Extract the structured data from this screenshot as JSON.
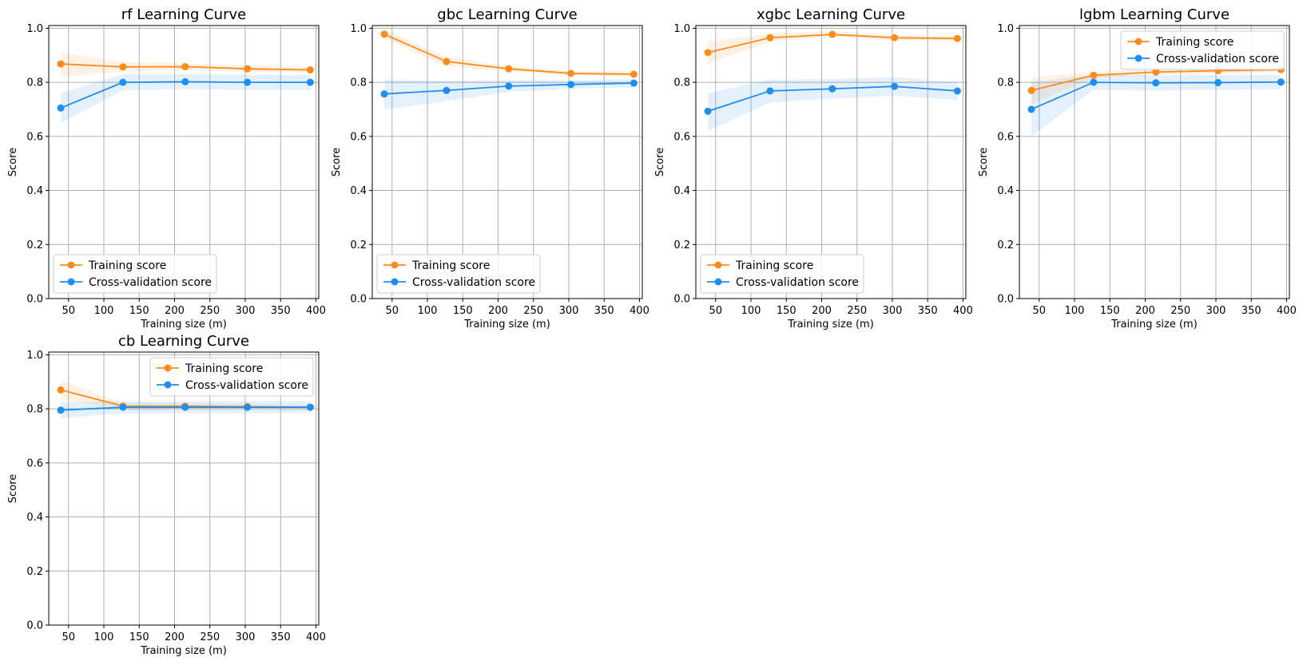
{
  "colors": {
    "training": "#ff8c1a",
    "validation": "#1e8ff0",
    "grid": "#b0b0b0",
    "axis": "#000000",
    "legend_border": "#cccccc"
  },
  "chart_data": [
    {
      "type": "line",
      "title": "rf Learning Curve",
      "xlabel": "Training size (m)",
      "ylabel": "Score",
      "xlim": [
        22,
        404
      ],
      "ylim": [
        0.0,
        1.01
      ],
      "xticks": [
        50,
        100,
        150,
        200,
        250,
        300,
        350,
        400
      ],
      "yticks": [
        0.0,
        0.2,
        0.4,
        0.6,
        0.8,
        1.0
      ],
      "ytick_labels": [
        "0.0",
        "0.2",
        "0.4",
        "0.6",
        "0.8",
        "1.0"
      ],
      "grid": true,
      "legend_position": "lower-left",
      "x": [
        39,
        127,
        215,
        303,
        392
      ],
      "series": [
        {
          "name": "Training score",
          "color_key": "training",
          "values": [
            0.868,
            0.857,
            0.858,
            0.85,
            0.846
          ],
          "lower": [
            0.82,
            0.84,
            0.845,
            0.838,
            0.836
          ],
          "upper": [
            0.91,
            0.875,
            0.87,
            0.862,
            0.856
          ]
        },
        {
          "name": "Cross-validation score",
          "color_key": "validation",
          "values": [
            0.705,
            0.8,
            0.802,
            0.8,
            0.8
          ],
          "lower": [
            0.65,
            0.77,
            0.775,
            0.772,
            0.772
          ],
          "upper": [
            0.76,
            0.83,
            0.83,
            0.828,
            0.828
          ]
        }
      ]
    },
    {
      "type": "line",
      "title": "gbc Learning Curve",
      "xlabel": "Training size (m)",
      "ylabel": "Score",
      "xlim": [
        22,
        404
      ],
      "ylim": [
        0.0,
        1.01
      ],
      "xticks": [
        50,
        100,
        150,
        200,
        250,
        300,
        350,
        400
      ],
      "yticks": [
        0.0,
        0.2,
        0.4,
        0.6,
        0.8,
        1.0
      ],
      "ytick_labels": [
        "0.0",
        "0.2",
        "0.4",
        "0.6",
        "0.8",
        "1.0"
      ],
      "grid": true,
      "legend_position": "lower-left",
      "x": [
        39,
        127,
        215,
        303,
        392
      ],
      "series": [
        {
          "name": "Training score",
          "color_key": "training",
          "values": [
            0.978,
            0.877,
            0.85,
            0.833,
            0.83
          ],
          "lower": [
            0.96,
            0.86,
            0.84,
            0.825,
            0.822
          ],
          "upper": [
            0.996,
            0.895,
            0.86,
            0.842,
            0.838
          ]
        },
        {
          "name": "Cross-validation score",
          "color_key": "validation",
          "values": [
            0.757,
            0.77,
            0.786,
            0.792,
            0.797
          ],
          "lower": [
            0.7,
            0.73,
            0.765,
            0.776,
            0.782
          ],
          "upper": [
            0.81,
            0.805,
            0.808,
            0.808,
            0.812
          ]
        }
      ]
    },
    {
      "type": "line",
      "title": "xgbc Learning Curve",
      "xlabel": "Training size (m)",
      "ylabel": "Score",
      "xlim": [
        22,
        404
      ],
      "ylim": [
        0.0,
        1.01
      ],
      "xticks": [
        50,
        100,
        150,
        200,
        250,
        300,
        350,
        400
      ],
      "yticks": [
        0.0,
        0.2,
        0.4,
        0.6,
        0.8,
        1.0
      ],
      "ytick_labels": [
        "0.0",
        "0.2",
        "0.4",
        "0.6",
        "0.8",
        "1.0"
      ],
      "grid": true,
      "legend_position": "lower-left",
      "x": [
        39,
        127,
        215,
        303,
        392
      ],
      "series": [
        {
          "name": "Training score",
          "color_key": "training",
          "values": [
            0.91,
            0.965,
            0.977,
            0.965,
            0.962
          ],
          "lower": [
            0.87,
            0.95,
            0.97,
            0.955,
            0.955
          ],
          "upper": [
            0.95,
            0.98,
            0.99,
            0.975,
            0.97
          ]
        },
        {
          "name": "Cross-validation score",
          "color_key": "validation",
          "values": [
            0.693,
            0.768,
            0.776,
            0.785,
            0.768
          ],
          "lower": [
            0.62,
            0.725,
            0.74,
            0.75,
            0.735
          ],
          "upper": [
            0.76,
            0.81,
            0.812,
            0.82,
            0.8
          ]
        }
      ]
    },
    {
      "type": "line",
      "title": "lgbm Learning Curve",
      "xlabel": "Training size (m)",
      "ylabel": "Score",
      "xlim": [
        22,
        404
      ],
      "ylim": [
        0.0,
        1.01
      ],
      "xticks": [
        50,
        100,
        150,
        200,
        250,
        300,
        350,
        400
      ],
      "yticks": [
        0.0,
        0.2,
        0.4,
        0.6,
        0.8,
        1.0
      ],
      "ytick_labels": [
        "0.0",
        "0.2",
        "0.4",
        "0.6",
        "0.8",
        "1.0"
      ],
      "grid": true,
      "legend_position": "upper-right",
      "x": [
        39,
        127,
        215,
        303,
        392
      ],
      "series": [
        {
          "name": "Training score",
          "color_key": "training",
          "values": [
            0.77,
            0.826,
            0.838,
            0.843,
            0.847
          ],
          "lower": [
            0.72,
            0.815,
            0.828,
            0.833,
            0.838
          ],
          "upper": [
            0.82,
            0.838,
            0.848,
            0.853,
            0.856
          ]
        },
        {
          "name": "Cross-validation score",
          "color_key": "validation",
          "values": [
            0.7,
            0.8,
            0.798,
            0.799,
            0.801
          ],
          "lower": [
            0.6,
            0.772,
            0.77,
            0.772,
            0.775
          ],
          "upper": [
            0.8,
            0.828,
            0.826,
            0.826,
            0.828
          ]
        }
      ]
    },
    {
      "type": "line",
      "title": "cb Learning Curve",
      "xlabel": "Training size (m)",
      "ylabel": "Score",
      "xlim": [
        22,
        404
      ],
      "ylim": [
        0.0,
        1.01
      ],
      "xticks": [
        50,
        100,
        150,
        200,
        250,
        300,
        350,
        400
      ],
      "yticks": [
        0.0,
        0.2,
        0.4,
        0.6,
        0.8,
        1.0
      ],
      "ytick_labels": [
        "0.0",
        "0.2",
        "0.4",
        "0.6",
        "0.8",
        "1.0"
      ],
      "grid": true,
      "legend_position": "upper-right",
      "x": [
        39,
        127,
        215,
        303,
        392
      ],
      "series": [
        {
          "name": "Training score",
          "color_key": "training",
          "values": [
            0.87,
            0.81,
            0.81,
            0.808,
            0.806
          ],
          "lower": [
            0.835,
            0.8,
            0.8,
            0.799,
            0.798
          ],
          "upper": [
            0.905,
            0.822,
            0.822,
            0.818,
            0.815
          ]
        },
        {
          "name": "Cross-validation score",
          "color_key": "validation",
          "values": [
            0.795,
            0.806,
            0.806,
            0.806,
            0.806
          ],
          "lower": [
            0.765,
            0.783,
            0.784,
            0.784,
            0.784
          ],
          "upper": [
            0.825,
            0.828,
            0.828,
            0.828,
            0.828
          ]
        }
      ]
    }
  ]
}
